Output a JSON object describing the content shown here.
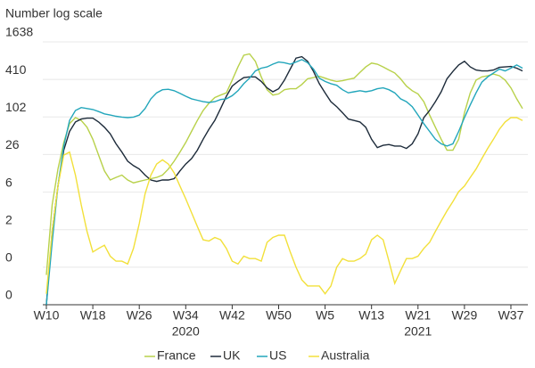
{
  "chart_data": {
    "type": "line",
    "title": "Number log scale",
    "log_scale": true,
    "grid": true,
    "legend": "bottom",
    "year_labels": [
      "2020",
      "2021"
    ],
    "categories": [
      "W10",
      null,
      null,
      null,
      null,
      null,
      null,
      null,
      "W18",
      null,
      null,
      null,
      null,
      null,
      null,
      null,
      "W26",
      null,
      null,
      null,
      null,
      null,
      null,
      null,
      "W34",
      null,
      null,
      null,
      null,
      null,
      null,
      null,
      "W42",
      null,
      null,
      null,
      null,
      null,
      null,
      null,
      "W50",
      null,
      null,
      null,
      null,
      null,
      null,
      null,
      "W5",
      null,
      null,
      null,
      null,
      null,
      null,
      null,
      "W13",
      null,
      null,
      null,
      null,
      null,
      null,
      null,
      "W21",
      null,
      null,
      null,
      null,
      null,
      null,
      null,
      "W29",
      null,
      null,
      null,
      null,
      null,
      null,
      null,
      "W37",
      null,
      null
    ],
    "ylim": [
      0.1,
      1638.4
    ],
    "yticks": [
      {
        "value": 0.1,
        "label": "0"
      },
      {
        "value": 0.4,
        "label": "0"
      },
      {
        "value": 1.6,
        "label": "2"
      },
      {
        "value": 6.4,
        "label": "6"
      },
      {
        "value": 25.6,
        "label": "26"
      },
      {
        "value": 102.4,
        "label": "102"
      },
      {
        "value": 409.6,
        "label": "410"
      },
      {
        "value": 1638.4,
        "label": "1638"
      }
    ],
    "series": [
      {
        "name": "France",
        "color": "#b8d14a",
        "values": [
          0.3,
          4,
          15,
          40,
          80,
          100,
          90,
          70,
          45,
          25,
          14,
          10,
          11,
          12,
          10,
          9,
          9.5,
          10,
          10.5,
          11,
          12,
          15,
          20,
          28,
          40,
          60,
          90,
          130,
          170,
          210,
          230,
          250,
          400,
          650,
          1000,
          1050,
          800,
          450,
          280,
          230,
          240,
          280,
          290,
          290,
          340,
          420,
          440,
          460,
          430,
          400,
          380,
          390,
          410,
          430,
          530,
          650,
          750,
          720,
          650,
          580,
          520,
          420,
          320,
          270,
          240,
          180,
          110,
          70,
          45,
          30,
          30,
          45,
          120,
          250,
          400,
          450,
          470,
          500,
          470,
          400,
          300,
          200,
          140
        ]
      },
      {
        "name": "UK",
        "color": "#1d2b3a",
        "values": [
          0.1,
          1.5,
          8,
          30,
          60,
          85,
          95,
          98,
          98,
          85,
          70,
          55,
          38,
          28,
          20,
          17,
          15,
          12,
          10,
          9.5,
          10,
          10,
          10.5,
          14,
          18,
          22,
          30,
          45,
          65,
          90,
          140,
          220,
          320,
          380,
          440,
          450,
          450,
          380,
          300,
          260,
          290,
          400,
          600,
          900,
          950,
          800,
          550,
          350,
          250,
          180,
          150,
          120,
          95,
          90,
          85,
          70,
          45,
          33,
          36,
          37,
          35,
          35,
          32,
          38,
          55,
          100,
          130,
          180,
          260,
          420,
          550,
          700,
          800,
          650,
          580,
          560,
          560,
          580,
          640,
          650,
          660,
          620,
          560
        ]
      },
      {
        "name": "US",
        "color": "#22a6bb",
        "values": [
          0.1,
          1,
          8,
          35,
          90,
          130,
          145,
          140,
          135,
          125,
          115,
          110,
          105,
          102,
          100,
          102,
          110,
          140,
          200,
          250,
          280,
          285,
          270,
          245,
          220,
          200,
          190,
          180,
          175,
          180,
          195,
          200,
          225,
          270,
          350,
          430,
          560,
          620,
          650,
          720,
          780,
          760,
          720,
          780,
          850,
          760,
          600,
          430,
          380,
          350,
          330,
          280,
          250,
          260,
          270,
          260,
          270,
          290,
          300,
          280,
          250,
          200,
          180,
          150,
          110,
          80,
          60,
          45,
          38,
          35,
          38,
          60,
          100,
          160,
          250,
          370,
          450,
          520,
          600,
          560,
          620,
          700,
          620
        ]
      },
      {
        "name": "Australia",
        "color": "#f2e03a",
        "values": [
          0.15,
          1.5,
          8,
          25,
          28,
          12,
          4,
          1.5,
          0.7,
          0.8,
          0.9,
          0.6,
          0.5,
          0.5,
          0.45,
          0.8,
          2,
          6,
          12,
          18,
          21,
          18,
          13,
          8,
          5,
          3,
          1.8,
          1.1,
          1.05,
          1.2,
          1.1,
          0.8,
          0.5,
          0.45,
          0.6,
          0.55,
          0.55,
          0.5,
          1,
          1.2,
          1.3,
          1.3,
          0.7,
          0.4,
          0.25,
          0.2,
          0.2,
          0.2,
          0.15,
          0.2,
          0.4,
          0.55,
          0.5,
          0.5,
          0.55,
          0.65,
          1.1,
          1.3,
          1.1,
          0.5,
          0.22,
          0.35,
          0.55,
          0.55,
          0.6,
          0.8,
          1,
          1.5,
          2.2,
          3.2,
          4.5,
          6.5,
          8,
          11,
          15,
          22,
          32,
          45,
          65,
          85,
          100,
          100,
          90
        ]
      }
    ]
  }
}
